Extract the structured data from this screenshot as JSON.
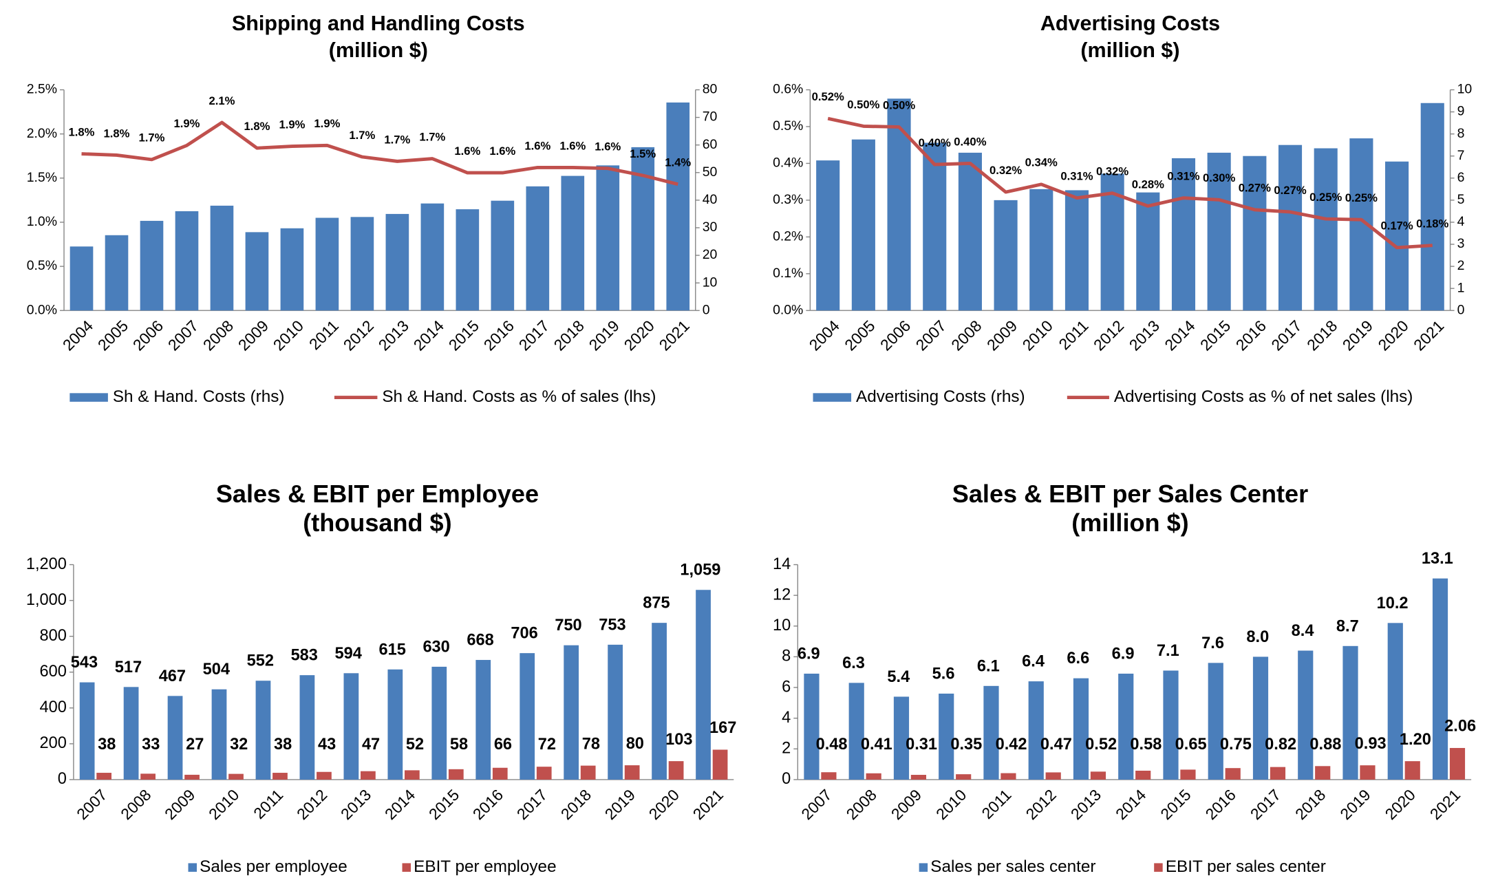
{
  "chart_data": [
    {
      "type": "combo",
      "title": "Shipping and Handling Costs",
      "subtitle": "(million $)",
      "categories": [
        "2004",
        "2005",
        "2006",
        "2007",
        "2008",
        "2009",
        "2010",
        "2011",
        "2012",
        "2013",
        "2014",
        "2015",
        "2016",
        "2017",
        "2018",
        "2019",
        "2020",
        "2021"
      ],
      "series": [
        {
          "name": "Sh & Hand. Costs (rhs)",
          "type": "bar",
          "axis": "y2",
          "color": "#4a7ebb",
          "values": [
            23.2,
            27.3,
            32.5,
            36,
            38,
            28.4,
            29.8,
            33.6,
            33.9,
            35,
            38.8,
            36.7,
            39.8,
            45,
            48.8,
            52.6,
            59.2,
            75.4
          ]
        },
        {
          "name": "Sh & Hand. Costs as % of sales (lhs)",
          "type": "line",
          "color": "#c0504d",
          "values": [
            1.775,
            1.76,
            1.71,
            1.87,
            2.13,
            1.84,
            1.86,
            1.87,
            1.74,
            1.69,
            1.72,
            1.56,
            1.56,
            1.62,
            1.62,
            1.61,
            1.53,
            1.43
          ],
          "value_labels": [
            "1.8%",
            "1.8%",
            "1.7%",
            "1.9%",
            "2.1%",
            "1.8%",
            "1.9%",
            "1.9%",
            "1.7%",
            "1.7%",
            "1.7%",
            "1.6%",
            "1.6%",
            "1.6%",
            "1.6%",
            "1.6%",
            "1.5%",
            "1.4%"
          ]
        }
      ],
      "ylim": [
        0,
        2.5
      ],
      "yticks": [
        {
          "value": 0,
          "label": "0.0%"
        },
        {
          "value": 0.5,
          "label": "0.5%"
        },
        {
          "value": 1,
          "label": "1.0%"
        },
        {
          "value": 1.5,
          "label": "1.5%"
        },
        {
          "value": 2,
          "label": "2.0%"
        },
        {
          "value": 2.5,
          "label": "2.5%"
        }
      ],
      "y2lim": [
        0,
        80
      ],
      "y2ticks": [
        0,
        10,
        20,
        30,
        40,
        50,
        60,
        70,
        80
      ]
    },
    {
      "type": "combo",
      "title": "Advertising Costs",
      "subtitle": "(million $)",
      "categories": [
        "2004",
        "2005",
        "2006",
        "2007",
        "2008",
        "2009",
        "2010",
        "2011",
        "2012",
        "2013",
        "2014",
        "2015",
        "2016",
        "2017",
        "2018",
        "2019",
        "2020",
        "2021"
      ],
      "series": [
        {
          "name": "Advertising Costs (rhs)",
          "type": "bar",
          "axis": "y2",
          "color": "#4a7ebb",
          "values": [
            6.8,
            7.75,
            9.6,
            7.6,
            7.15,
            5.0,
            5.5,
            5.45,
            6.2,
            5.35,
            6.9,
            7.15,
            7.0,
            7.5,
            7.35,
            7.8,
            6.75,
            9.4
          ]
        },
        {
          "name": "Advertising Costs as % of net sales (lhs)",
          "type": "line",
          "color": "#c0504d",
          "values": [
            0.522,
            0.501,
            0.499,
            0.397,
            0.4,
            0.322,
            0.343,
            0.306,
            0.319,
            0.284,
            0.306,
            0.301,
            0.274,
            0.268,
            0.249,
            0.247,
            0.171,
            0.177
          ],
          "value_labels": [
            "0.52%",
            "0.50%",
            "0.50%",
            "0.40%",
            "0.40%",
            "0.32%",
            "0.34%",
            "0.31%",
            "0.32%",
            "0.28%",
            "0.31%",
            "0.30%",
            "0.27%",
            "0.27%",
            "0.25%",
            "0.25%",
            "0.17%",
            "0.18%"
          ]
        }
      ],
      "ylim": [
        0,
        0.6
      ],
      "yticks": [
        {
          "value": 0,
          "label": "0.0%"
        },
        {
          "value": 0.1,
          "label": "0.1%"
        },
        {
          "value": 0.2,
          "label": "0.2%"
        },
        {
          "value": 0.3,
          "label": "0.3%"
        },
        {
          "value": 0.4,
          "label": "0.4%"
        },
        {
          "value": 0.5,
          "label": "0.5%"
        },
        {
          "value": 0.6,
          "label": "0.6%"
        }
      ],
      "y2lim": [
        0,
        10
      ],
      "y2ticks": [
        0,
        1,
        2,
        3,
        4,
        5,
        6,
        7,
        8,
        9,
        10
      ]
    },
    {
      "type": "bar",
      "title": "Sales & EBIT per Employee",
      "subtitle": "(thousand $)",
      "categories": [
        "2007",
        "2008",
        "2009",
        "2010",
        "2011",
        "2012",
        "2013",
        "2014",
        "2015",
        "2016",
        "2017",
        "2018",
        "2019",
        "2020",
        "2021"
      ],
      "series": [
        {
          "name": "Sales per employee",
          "color": "#4a7ebb",
          "values": [
            543,
            517,
            467,
            504,
            552,
            583,
            594,
            615,
            630,
            668,
            706,
            750,
            753,
            875,
            1059
          ],
          "value_labels": [
            "543",
            "517",
            "467",
            "504",
            "552",
            "583",
            "594",
            "615",
            "630",
            "668",
            "706",
            "750",
            "753",
            "875",
            "1,059"
          ]
        },
        {
          "name": "EBIT per employee",
          "color": "#c0504d",
          "values": [
            38,
            33,
            27,
            32,
            38,
            43,
            47,
            52,
            58,
            66,
            72,
            78,
            80,
            103,
            167
          ]
        }
      ],
      "ylim": [
        0,
        1200
      ],
      "yticks": [
        0,
        200,
        400,
        600,
        800,
        {
          "value": 1000,
          "label": "1,000"
        },
        {
          "value": 1200,
          "label": "1,200"
        }
      ]
    },
    {
      "type": "bar",
      "title": "Sales & EBIT per Sales Center",
      "subtitle": "(million $)",
      "categories": [
        "2007",
        "2008",
        "2009",
        "2010",
        "2011",
        "2012",
        "2013",
        "2014",
        "2015",
        "2016",
        "2017",
        "2018",
        "2019",
        "2020",
        "2021"
      ],
      "series": [
        {
          "name": "Sales per sales center",
          "color": "#4a7ebb",
          "values": [
            6.9,
            6.3,
            5.4,
            5.6,
            6.1,
            6.4,
            6.6,
            6.9,
            7.1,
            7.6,
            8,
            8.4,
            8.7,
            10.2,
            13.1
          ],
          "value_labels": [
            "6.9",
            "6.3",
            "5.4",
            "5.6",
            "6.1",
            "6.4",
            "6.6",
            "6.9",
            "7.1",
            "7.6",
            "8.0",
            "8.4",
            "8.7",
            "10.2",
            "13.1"
          ]
        },
        {
          "name": "EBIT per sales center",
          "color": "#c0504d",
          "values": [
            0.48,
            0.41,
            0.31,
            0.35,
            0.42,
            0.47,
            0.52,
            0.58,
            0.65,
            0.75,
            0.82,
            0.88,
            0.93,
            1.2,
            2.06
          ],
          "value_labels": [
            "0.48",
            "0.41",
            "0.31",
            "0.35",
            "0.42",
            "0.47",
            "0.52",
            "0.58",
            "0.65",
            "0.75",
            "0.82",
            "0.88",
            "0.93",
            "1.20",
            "2.06"
          ]
        }
      ],
      "ylim": [
        0,
        14
      ],
      "yticks": [
        0,
        2,
        4,
        6,
        8,
        10,
        12,
        14
      ]
    }
  ]
}
